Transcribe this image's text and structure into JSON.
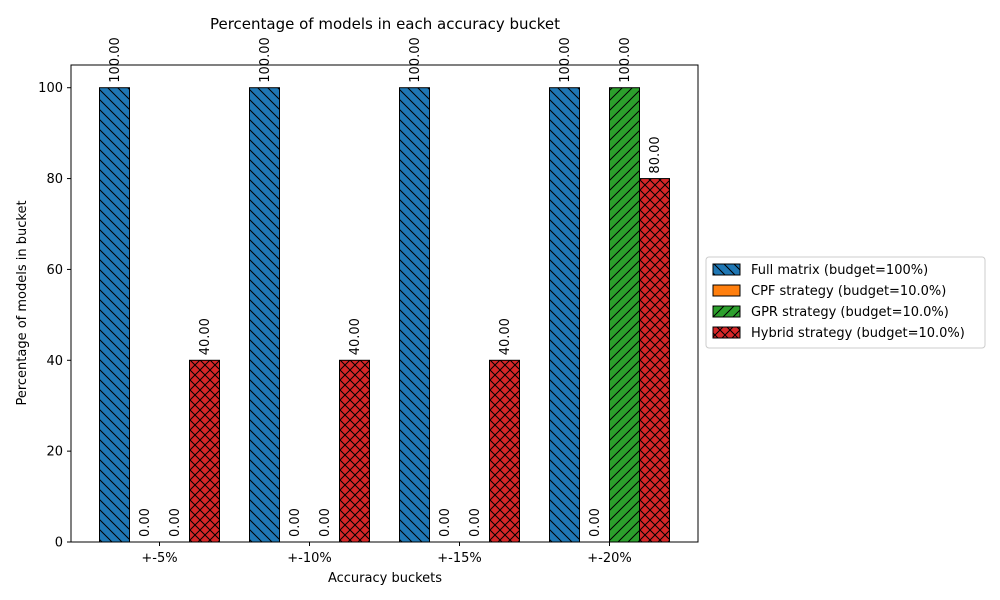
{
  "chart_data": {
    "type": "bar",
    "title": "Percentage of models in each accuracy bucket",
    "xlabel": "Accuracy buckets",
    "ylabel": "Percentage of models in bucket",
    "categories": [
      "+-5%",
      "+-10%",
      "+-15%",
      "+-20%"
    ],
    "ylim": [
      0,
      105
    ],
    "yticks": [
      0,
      20,
      40,
      60,
      80,
      100
    ],
    "grid": false,
    "legend_position": "right",
    "series": [
      {
        "name": "Full matrix (budget=100%)",
        "values": [
          100,
          100,
          100,
          100
        ],
        "color": "#1f77b4",
        "hatch": "backslash"
      },
      {
        "name": "CPF strategy (budget=10.0%)",
        "values": [
          0,
          0,
          0,
          0
        ],
        "color": "#ff7f0e",
        "hatch": "none"
      },
      {
        "name": "GPR strategy (budget=10.0%)",
        "values": [
          0,
          0,
          0,
          100
        ],
        "color": "#2ca02c",
        "hatch": "slash"
      },
      {
        "name": "Hybrid strategy (budget=10.0%)",
        "values": [
          40,
          40,
          40,
          80
        ],
        "color": "#d62728",
        "hatch": "cross"
      }
    ],
    "value_labels": [
      [
        "100.00",
        "100.00",
        "100.00",
        "100.00"
      ],
      [
        "0.00",
        "0.00",
        "0.00",
        "0.00"
      ],
      [
        "0.00",
        "0.00",
        "0.00",
        "100.00"
      ],
      [
        "40.00",
        "40.00",
        "40.00",
        "80.00"
      ]
    ]
  }
}
